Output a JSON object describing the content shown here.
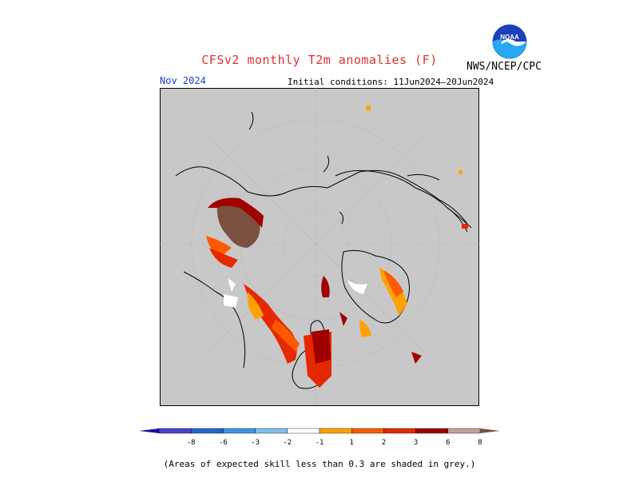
{
  "header": {
    "title": "CFSv2 monthly T2m anomalies (F)",
    "title_color": "#e03030",
    "agency": "NWS/NCEP/CPC",
    "logo_text": "NOAA",
    "month": "Nov 2024",
    "month_color": "#1f3fbf",
    "initial_conditions": "Initial conditions: 11Jun2024–20Jun2024"
  },
  "map": {
    "projection": "polar-stereographic-north",
    "background_color": "#c8c8c8",
    "grid": true
  },
  "colorbar": {
    "ticks": [
      "-8",
      "-6",
      "-3",
      "-2",
      "-1",
      "1",
      "2",
      "3",
      "6",
      "8"
    ],
    "colors": [
      "#1a0ea6",
      "#4a3fd0",
      "#1e69d0",
      "#3d95e8",
      "#7cc0f2",
      "#ffffff",
      "#ffa200",
      "#ff5a00",
      "#e62800",
      "#a00000",
      "#c8a096",
      "#7a5040"
    ]
  },
  "footnote": "(Areas of expected skill less than 0.3 are shaded in grey.)"
}
